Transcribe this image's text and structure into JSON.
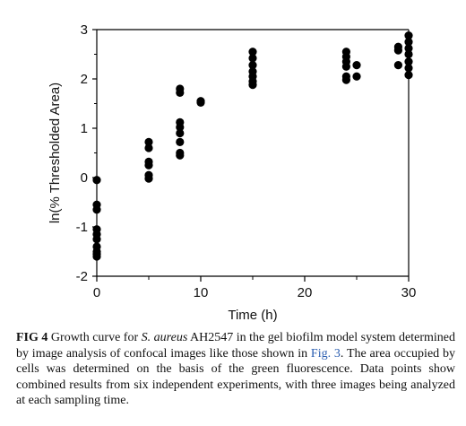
{
  "chart_data": {
    "type": "scatter",
    "title": "",
    "xlabel": "Time (h)",
    "ylabel": "ln(% Thresholded Area)",
    "xlim": [
      0,
      30
    ],
    "ylim": [
      -2,
      3
    ],
    "xticks": [
      0,
      10,
      20,
      30
    ],
    "yticks": [
      -2,
      -1,
      0,
      1,
      2,
      3
    ],
    "xtick_labels": [
      "0",
      "10",
      "20",
      "30"
    ],
    "ytick_labels": [
      "-2",
      "-1",
      "0",
      "1",
      "2",
      "3"
    ],
    "grid": false,
    "marker_color": "#000000",
    "points": [
      {
        "x": 0,
        "y": -0.05
      },
      {
        "x": 0,
        "y": -0.55
      },
      {
        "x": 0,
        "y": -0.65
      },
      {
        "x": 0,
        "y": -1.05
      },
      {
        "x": 0,
        "y": -1.15
      },
      {
        "x": 0,
        "y": -1.25
      },
      {
        "x": 0,
        "y": -1.4
      },
      {
        "x": 0,
        "y": -1.5
      },
      {
        "x": 0,
        "y": -1.55
      },
      {
        "x": 0,
        "y": -1.6
      },
      {
        "x": 5,
        "y": 0.72
      },
      {
        "x": 5,
        "y": 0.6
      },
      {
        "x": 5,
        "y": 0.32
      },
      {
        "x": 5,
        "y": 0.25
      },
      {
        "x": 5,
        "y": 0.05
      },
      {
        "x": 5,
        "y": -0.02
      },
      {
        "x": 8,
        "y": 1.8
      },
      {
        "x": 8,
        "y": 1.72
      },
      {
        "x": 8,
        "y": 1.12
      },
      {
        "x": 8,
        "y": 1.02
      },
      {
        "x": 8,
        "y": 0.9
      },
      {
        "x": 8,
        "y": 0.72
      },
      {
        "x": 8,
        "y": 0.5
      },
      {
        "x": 8,
        "y": 0.45
      },
      {
        "x": 10,
        "y": 1.55
      },
      {
        "x": 10,
        "y": 1.52
      },
      {
        "x": 15,
        "y": 2.55
      },
      {
        "x": 15,
        "y": 2.42
      },
      {
        "x": 15,
        "y": 2.28
      },
      {
        "x": 15,
        "y": 2.15
      },
      {
        "x": 15,
        "y": 2.05
      },
      {
        "x": 15,
        "y": 1.95
      },
      {
        "x": 15,
        "y": 1.88
      },
      {
        "x": 24,
        "y": 2.55
      },
      {
        "x": 24,
        "y": 2.45
      },
      {
        "x": 24,
        "y": 2.35
      },
      {
        "x": 24,
        "y": 2.25
      },
      {
        "x": 24,
        "y": 2.05
      },
      {
        "x": 24,
        "y": 1.98
      },
      {
        "x": 25,
        "y": 2.28
      },
      {
        "x": 25,
        "y": 2.05
      },
      {
        "x": 29,
        "y": 2.65
      },
      {
        "x": 29,
        "y": 2.58
      },
      {
        "x": 29,
        "y": 2.28
      },
      {
        "x": 30,
        "y": 2.88
      },
      {
        "x": 30,
        "y": 2.75
      },
      {
        "x": 30,
        "y": 2.62
      },
      {
        "x": 30,
        "y": 2.5
      },
      {
        "x": 30,
        "y": 2.35
      },
      {
        "x": 30,
        "y": 2.22
      },
      {
        "x": 30,
        "y": 2.08
      }
    ]
  },
  "caption": {
    "fig_label": "FIG 4",
    "text_before_italic": " Growth curve for ",
    "italic": "S. aureus",
    "text_after_italic": " AH2547 in the gel biofilm model system determined by image analysis of confocal images like those shown in ",
    "link_text": "Fig. 3",
    "text_end": ". The area occupied by cells was determined on the basis of the green fluorescence. Data points show combined results from six independent experiments, with three images being analyzed at each sampling time."
  }
}
